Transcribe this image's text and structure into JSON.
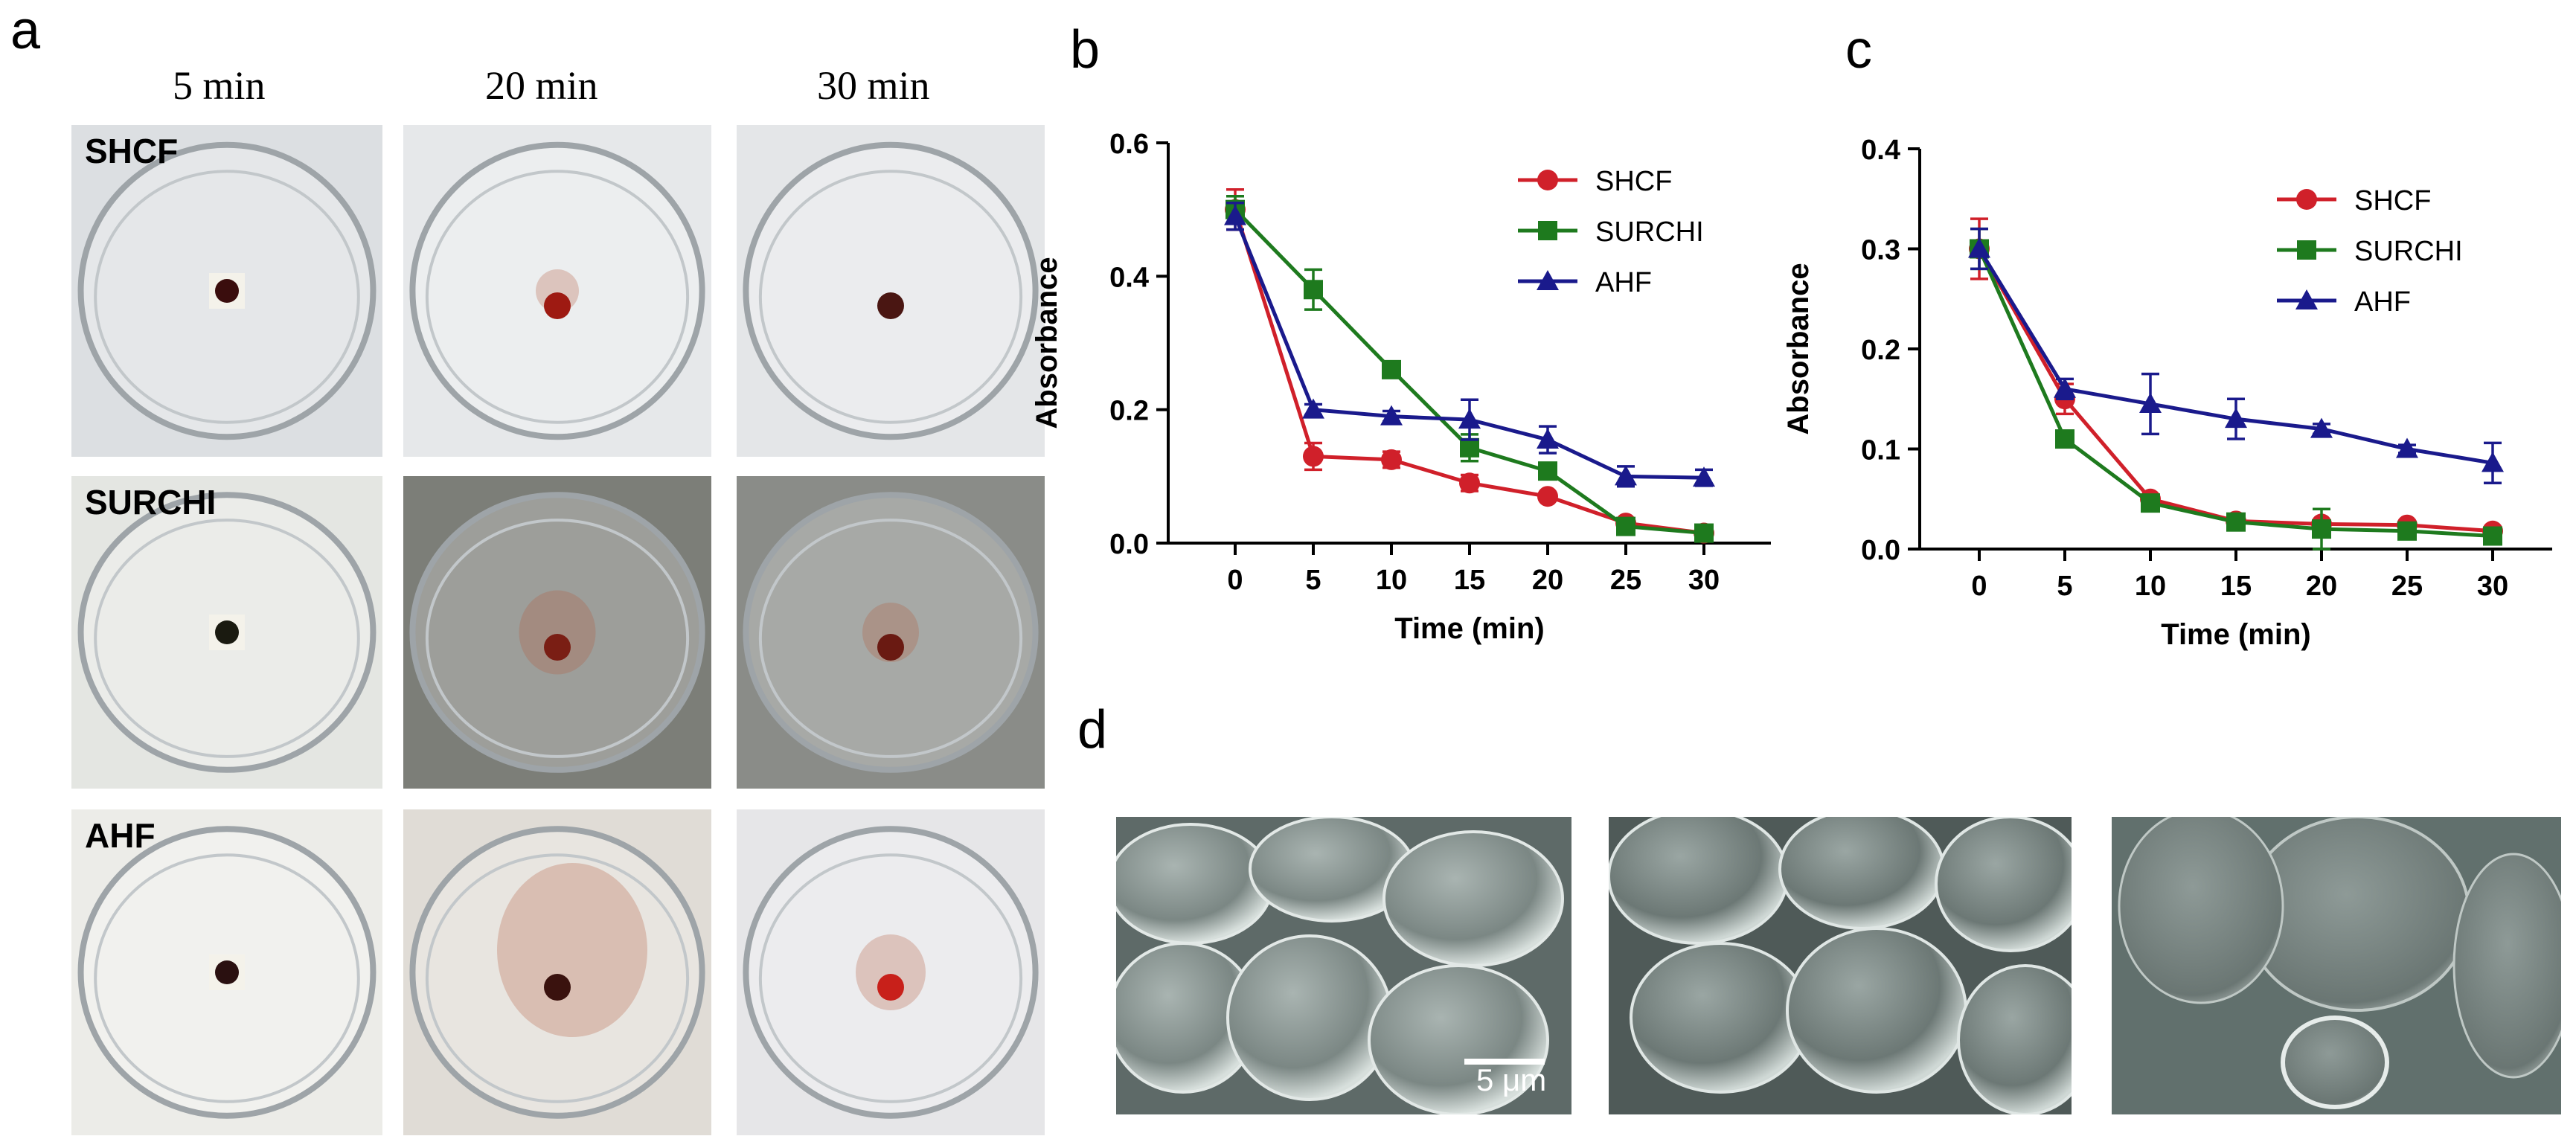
{
  "panel_a": {
    "letter": "a",
    "times": [
      "5 min",
      "20 min",
      "30 min"
    ],
    "rows": [
      {
        "label": "SHCF",
        "clots": [
          {
            "color": "#3a0d0d",
            "spread": 0,
            "square": true
          },
          {
            "color": "#9e1a12",
            "spread": 0.1,
            "square": false
          },
          {
            "color": "#4a1612",
            "spread": 0,
            "square": false
          }
        ]
      },
      {
        "label": "SURCHI",
        "clots": [
          {
            "color": "#1a1a10",
            "spread": 0,
            "square": true
          },
          {
            "color": "#7a1e14",
            "spread": 0.35,
            "square": false
          },
          {
            "color": "#6a1a12",
            "spread": 0.2,
            "square": false
          }
        ]
      },
      {
        "label": "AHF",
        "clots": [
          {
            "color": "#2a1010",
            "spread": 0,
            "square": true
          },
          {
            "color": "#3a120e",
            "spread": 0.9,
            "square": false
          },
          {
            "color": "#c8201a",
            "spread": 0.3,
            "square": false
          }
        ]
      }
    ]
  },
  "panel_d": {
    "letter": "d",
    "scale_label": "5 μm"
  },
  "chart_data": [
    {
      "panel": "b",
      "type": "line",
      "xlabel": "Time (min)",
      "ylabel": "Absorbance",
      "x": [
        0,
        5,
        10,
        15,
        20,
        25,
        30
      ],
      "xticks": [
        "0",
        "5",
        "10",
        "15",
        "20",
        "25",
        "30"
      ],
      "ylim": [
        0,
        0.6
      ],
      "yticks": [
        "0.0",
        "0.2",
        "0.4",
        "0.6"
      ],
      "ytick_values": [
        0,
        0.2,
        0.4,
        0.6
      ],
      "legend_position": "top-right",
      "series": [
        {
          "name": "SHCF",
          "color": "#d0202a",
          "marker": "circle",
          "values": [
            0.5,
            0.13,
            0.125,
            0.09,
            0.07,
            0.03,
            0.015
          ],
          "errors": [
            0.03,
            0.02,
            0.012,
            0.012,
            0.006,
            0.004,
            0.003
          ]
        },
        {
          "name": "SURCHI",
          "color": "#1e7a1e",
          "marker": "square",
          "values": [
            0.5,
            0.38,
            0.26,
            0.143,
            0.108,
            0.025,
            0.015
          ],
          "errors": [
            0.02,
            0.03,
            0.006,
            0.02,
            0.006,
            0.004,
            0.003
          ]
        },
        {
          "name": "AHF",
          "color": "#1a1a8c",
          "marker": "triangle",
          "values": [
            0.49,
            0.2,
            0.19,
            0.185,
            0.155,
            0.1,
            0.098
          ],
          "errors": [
            0.02,
            0.008,
            0.008,
            0.03,
            0.02,
            0.015,
            0.012
          ]
        }
      ]
    },
    {
      "panel": "c",
      "type": "line",
      "xlabel": "Time (min)",
      "ylabel": "Absorbance",
      "x": [
        0,
        5,
        10,
        15,
        20,
        25,
        30
      ],
      "xticks": [
        "0",
        "5",
        "10",
        "15",
        "20",
        "25",
        "30"
      ],
      "ylim": [
        0,
        0.4
      ],
      "yticks": [
        "0.0",
        "0.1",
        "0.2",
        "0.3",
        "0.4"
      ],
      "ytick_values": [
        0,
        0.1,
        0.2,
        0.3,
        0.4
      ],
      "legend_position": "top-right",
      "series": [
        {
          "name": "SHCF",
          "color": "#d0202a",
          "marker": "circle",
          "values": [
            0.3,
            0.15,
            0.05,
            0.028,
            0.025,
            0.024,
            0.018
          ],
          "errors": [
            0.03,
            0.015,
            0.004,
            0.004,
            0.004,
            0.003,
            0.003
          ]
        },
        {
          "name": "SURCHI",
          "color": "#1e7a1e",
          "marker": "square",
          "values": [
            0.3,
            0.11,
            0.046,
            0.027,
            0.02,
            0.018,
            0.013
          ],
          "errors": [
            0.02,
            0.005,
            0.004,
            0.004,
            0.02,
            0.004,
            0.003
          ]
        },
        {
          "name": "AHF",
          "color": "#1a1a8c",
          "marker": "triangle",
          "values": [
            0.3,
            0.16,
            0.145,
            0.13,
            0.12,
            0.1,
            0.086
          ],
          "errors": [
            0.02,
            0.01,
            0.03,
            0.02,
            0.005,
            0.004,
            0.02
          ]
        }
      ]
    }
  ]
}
